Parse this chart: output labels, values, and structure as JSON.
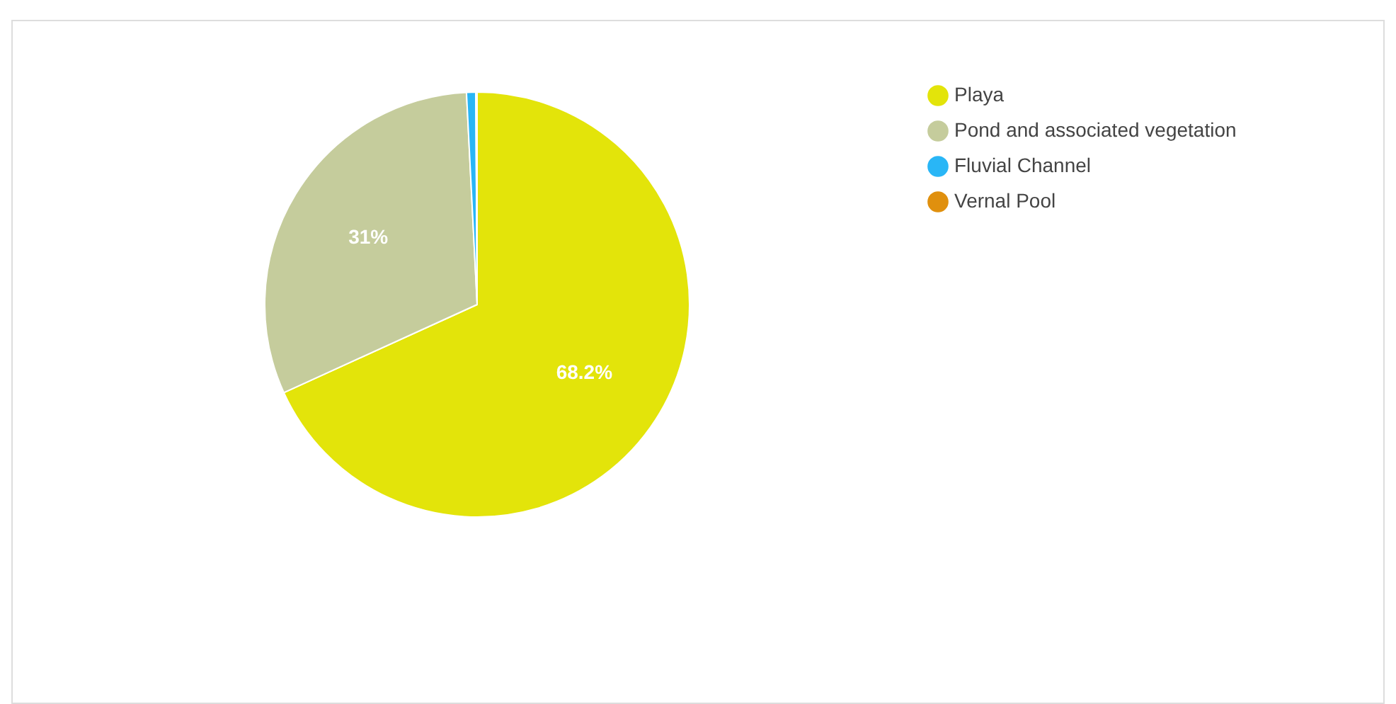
{
  "chart_data": {
    "type": "pie",
    "categories": [
      "Playa",
      "Pond and associated vegetation",
      "Fluvial Channel",
      "Vernal Pool"
    ],
    "values": [
      68.2,
      31,
      0.7,
      0.1
    ],
    "colors": [
      "#e3e40a",
      "#c5cc9c",
      "#29b6f6",
      "#e0900e"
    ],
    "value_labels": [
      "68.2%",
      "31%",
      null,
      null
    ],
    "legend": "top right"
  }
}
